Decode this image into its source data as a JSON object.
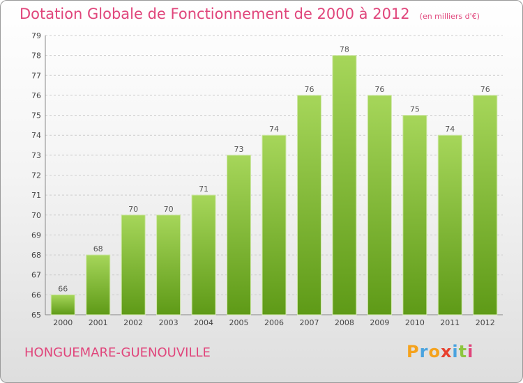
{
  "title": "Dotation Globale de Fonctionnement de 2000 à 2012",
  "subtitle": "(en milliers d'€)",
  "commune": "HONGUEMARE-GUENOUVILLE",
  "logo": {
    "letters": [
      "P",
      "r",
      "o",
      "x",
      "i",
      "t",
      "i"
    ],
    "colors": [
      "#f5a21c",
      "#4aa3df",
      "#f5a21c",
      "#e8402e",
      "#4aa3df",
      "#8cc63e",
      "#e0457b"
    ]
  },
  "colors": {
    "bar_top": "#a6d65a",
    "bar_bottom": "#5e9a17",
    "grid": "#cccccc",
    "title": "#e0457b"
  },
  "chart_data": {
    "type": "bar",
    "title": "Dotation Globale de Fonctionnement de 2000 à 2012",
    "subtitle": "(en milliers d'€)",
    "categories": [
      "2000",
      "2001",
      "2002",
      "2003",
      "2004",
      "2005",
      "2006",
      "2007",
      "2008",
      "2009",
      "2010",
      "2011",
      "2012"
    ],
    "values": [
      66,
      68,
      70,
      70,
      71,
      73,
      74,
      76,
      78,
      76,
      75,
      74,
      76
    ],
    "ylim": [
      65,
      79
    ],
    "yticks": [
      65,
      66,
      67,
      68,
      69,
      70,
      71,
      72,
      73,
      74,
      75,
      76,
      77,
      78,
      79
    ],
    "grid": true,
    "xlabel": "",
    "ylabel": ""
  }
}
